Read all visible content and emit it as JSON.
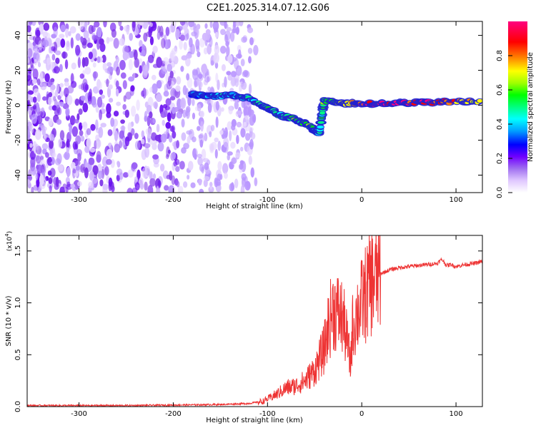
{
  "title": "C2E1.2025.314.07.12.G06",
  "chart_data": [
    {
      "type": "heatmap",
      "title": "C2E1.2025.314.07.12.G06",
      "xlabel": "Height of straight line (km)",
      "ylabel": "Frequency (Hz)",
      "xlim": [
        -355,
        128
      ],
      "ylim": [
        -50,
        48
      ],
      "x_ticks": [
        -300,
        -200,
        -100,
        0,
        100
      ],
      "x_tick_labels": [
        "-300",
        "-200",
        "-100",
        "0",
        "100"
      ],
      "y_ticks": [
        -40,
        -20,
        0,
        20,
        40
      ],
      "y_tick_labels": [
        "-40",
        "-20",
        "0",
        "20",
        "40"
      ],
      "noise_region": {
        "x_range": [
          -355,
          -135
        ],
        "freq_range": [
          -50,
          48
        ],
        "level": 0.15
      },
      "signal_trace": [
        {
          "x": -180,
          "freq": 6,
          "amp": 0.35
        },
        {
          "x": -160,
          "freq": 5,
          "amp": 0.4
        },
        {
          "x": -140,
          "freq": 6,
          "amp": 0.45
        },
        {
          "x": -120,
          "freq": 4,
          "amp": 0.5
        },
        {
          "x": -100,
          "freq": -2,
          "amp": 0.55
        },
        {
          "x": -85,
          "freq": -6,
          "amp": 0.55
        },
        {
          "x": -70,
          "freq": -8,
          "amp": 0.6
        },
        {
          "x": -55,
          "freq": -12,
          "amp": 0.6
        },
        {
          "x": -45,
          "freq": -16,
          "amp": 0.45
        },
        {
          "x": -40,
          "freq": 3,
          "amp": 0.6
        },
        {
          "x": -20,
          "freq": 1,
          "amp": 0.7
        },
        {
          "x": 0,
          "freq": 1,
          "amp": 0.9
        },
        {
          "x": 30,
          "freq": 1,
          "amp": 0.95
        },
        {
          "x": 60,
          "freq": 1.5,
          "amp": 0.9
        },
        {
          "x": 90,
          "freq": 2,
          "amp": 0.85
        },
        {
          "x": 128,
          "freq": 2,
          "amp": 0.7
        }
      ],
      "colorbar": {
        "label": "Normalized spectral amplitude",
        "range": [
          0,
          1
        ],
        "ticks": [
          0.0,
          0.2,
          0.4,
          0.6,
          0.8
        ],
        "tick_labels": [
          "0.0",
          "0.2",
          "0.4",
          "0.6",
          "0.8"
        ],
        "colors": [
          "#ffffff",
          "#e0c8ff",
          "#a070f0",
          "#7000ff",
          "#0000ff",
          "#00a0ff",
          "#00ffff",
          "#00ff80",
          "#00ff00",
          "#a0ff00",
          "#ffff00",
          "#ff8000",
          "#ff0000",
          "#ff0080"
        ]
      }
    },
    {
      "type": "line",
      "xlabel": "Height of straight line (km)",
      "ylabel": "SNR (10 * v/v)",
      "scale_label": "(x10",
      "scale_exponent": "4",
      "xlim": [
        -355,
        128
      ],
      "ylim": [
        0,
        1.65
      ],
      "x_ticks": [
        -300,
        -200,
        -100,
        0,
        100
      ],
      "x_tick_labels": [
        "-300",
        "-200",
        "-100",
        "0",
        "100"
      ],
      "y_ticks": [
        0,
        0.5,
        1.0,
        1.5
      ],
      "y_tick_labels": [
        "0.0",
        "0.5",
        "1.0",
        "1.5"
      ],
      "line_color": "#ee3333",
      "series": [
        {
          "name": "SNR",
          "x": [
            -355,
            -300,
            -250,
            -200,
            -150,
            -120,
            -105,
            -90,
            -80,
            -70,
            -60,
            -50,
            -40,
            -35,
            -30,
            -25,
            -20,
            -15,
            -12,
            -10,
            -5,
            0,
            10,
            20,
            30,
            40,
            50,
            60,
            70,
            80,
            85,
            90,
            95,
            100,
            110,
            120,
            128
          ],
          "values": [
            0.01,
            0.01,
            0.01,
            0.015,
            0.02,
            0.03,
            0.05,
            0.12,
            0.18,
            0.2,
            0.25,
            0.35,
            0.55,
            0.8,
            0.95,
            0.9,
            0.85,
            0.6,
            0.4,
            0.75,
            0.9,
            1.0,
            1.2,
            1.28,
            1.32,
            1.34,
            1.35,
            1.36,
            1.37,
            1.38,
            1.42,
            1.36,
            1.37,
            1.35,
            1.37,
            1.38,
            1.4
          ]
        }
      ]
    }
  ]
}
